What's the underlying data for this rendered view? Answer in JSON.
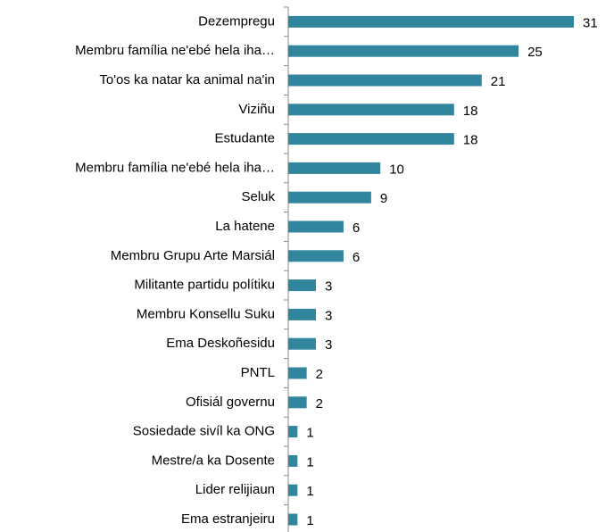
{
  "chart_data": {
    "type": "bar",
    "orientation": "horizontal",
    "color": "#31859c",
    "categories": [
      "Dezempregu",
      "Membru família ne'ebé hela iha…",
      "To'os ka natar ka animal na'in",
      "Viziñu",
      "Estudante",
      "Membru família ne'ebé hela iha…",
      "Seluk",
      "La hatene",
      "Membru Grupu Arte Marsiál",
      "Militante partidu polítiku",
      "Membru Konsellu Suku",
      "Ema Deskoñesidu",
      "PNTL",
      "Ofisiál governu",
      "Sosiedade sivíl ka ONG",
      "Mestre/a ka Dosente",
      "Lider relijiaun",
      "Ema estranjeiru"
    ],
    "values": [
      31,
      25,
      21,
      18,
      18,
      10,
      9,
      6,
      6,
      3,
      3,
      3,
      2,
      2,
      1,
      1,
      1,
      1
    ]
  }
}
